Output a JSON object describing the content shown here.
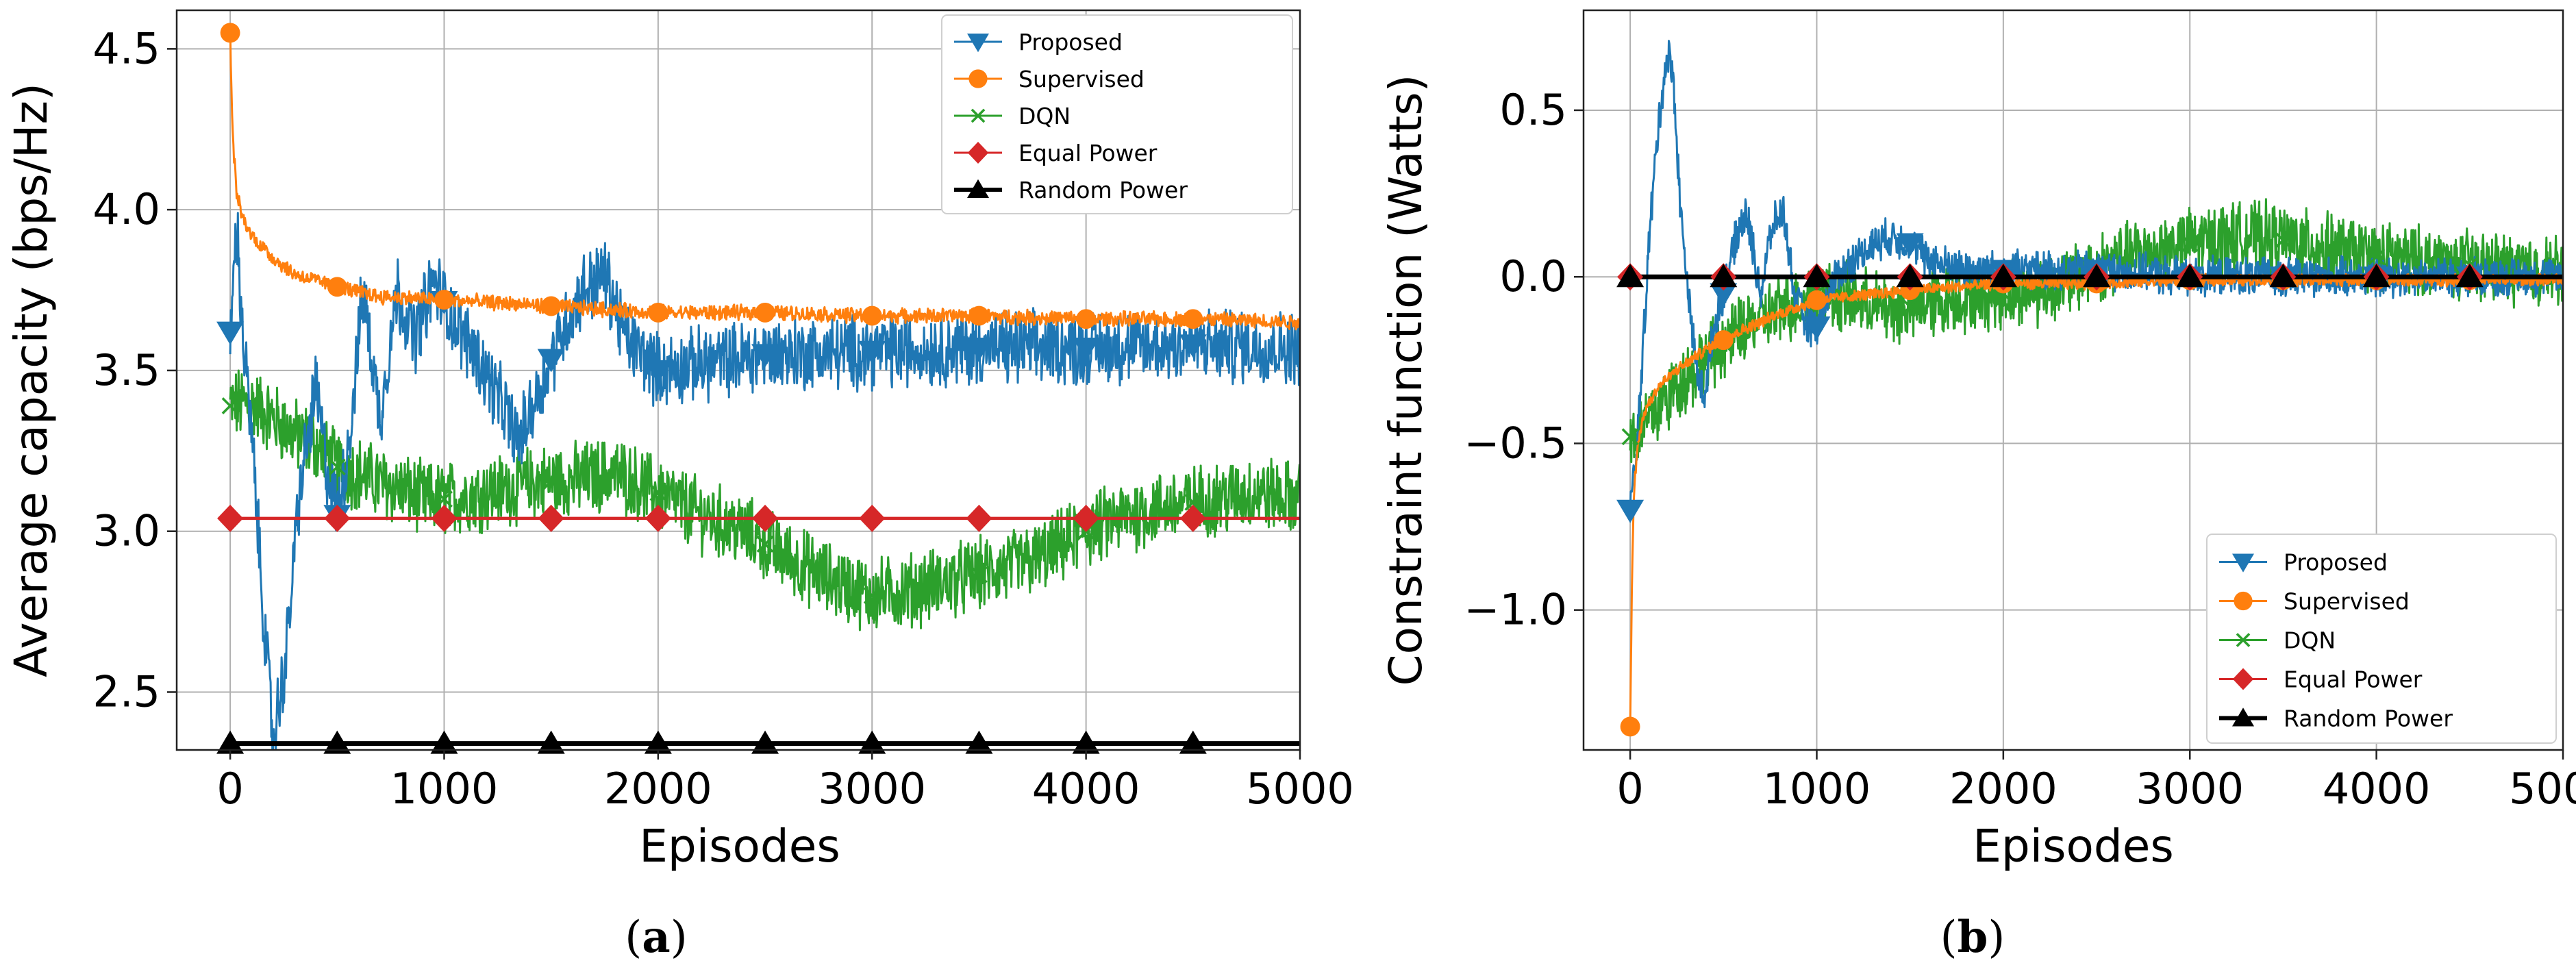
{
  "colors": {
    "proposed": "#1f77b4",
    "supervised": "#ff7f0e",
    "dqn": "#2ca02c",
    "equal_power": "#d62728",
    "random_power": "#000000"
  },
  "legend": [
    "Proposed",
    "Supervised",
    "DQN",
    "Equal Power",
    "Random Power"
  ],
  "panels": [
    {
      "label_open": "(",
      "label_letter": "a",
      "label_close": ")"
    },
    {
      "label_open": "(",
      "label_letter": "b",
      "label_close": ")"
    }
  ],
  "chart_data": [
    {
      "type": "line",
      "xlabel": "Episodes",
      "ylabel": "Average capacity (bps/Hz)",
      "xlim": [
        -250,
        5000
      ],
      "ylim": [
        2.32,
        4.62
      ],
      "xticks": [
        0,
        1000,
        2000,
        3000,
        4000,
        5000
      ],
      "xtick_labels": [
        "0",
        "1000",
        "2000",
        "3000",
        "4000",
        "5000"
      ],
      "yticks": [
        2.5,
        3.0,
        3.5,
        4.0,
        4.5
      ],
      "ytick_labels": [
        "2.5",
        "3.0",
        "3.5",
        "4.0",
        "4.5"
      ],
      "grid": true,
      "legend_position": "top-right",
      "series": [
        {
          "name": "Proposed",
          "marker": "triangle-down",
          "x": [
            0,
            30,
            60,
            100,
            150,
            200,
            260,
            320,
            400,
            450,
            500,
            560,
            620,
            700,
            780,
            860,
            950,
            1050,
            1150,
            1250,
            1350,
            1450,
            1550,
            1650,
            1750,
            1850,
            2000,
            2200,
            2500,
            3000,
            3500,
            4000,
            4500,
            5000
          ],
          "y": [
            3.62,
            3.95,
            3.6,
            3.3,
            2.8,
            2.35,
            2.6,
            3.1,
            3.45,
            3.2,
            3.05,
            3.3,
            3.75,
            3.35,
            3.75,
            3.6,
            3.78,
            3.65,
            3.55,
            3.42,
            3.28,
            3.45,
            3.62,
            3.75,
            3.8,
            3.6,
            3.5,
            3.52,
            3.55,
            3.56,
            3.57,
            3.57,
            3.58,
            3.57
          ],
          "noise": 0.1
        },
        {
          "name": "Supervised",
          "marker": "circle",
          "x": [
            0,
            10,
            30,
            60,
            100,
            200,
            300,
            500,
            700,
            1000,
            1500,
            2000,
            2500,
            3000,
            3500,
            4000,
            4500,
            5000
          ],
          "y": [
            4.55,
            4.25,
            4.05,
            3.97,
            3.92,
            3.85,
            3.8,
            3.76,
            3.73,
            3.72,
            3.7,
            3.68,
            3.68,
            3.67,
            3.67,
            3.66,
            3.66,
            3.65
          ],
          "noise": 0.02
        },
        {
          "name": "DQN",
          "marker": "x",
          "x": [
            0,
            100,
            200,
            300,
            400,
            500,
            600,
            700,
            800,
            900,
            1000,
            1200,
            1400,
            1600,
            1800,
            2000,
            2200,
            2400,
            2600,
            2800,
            3000,
            3200,
            3400,
            3600,
            3800,
            4000,
            4200,
            4400,
            4600,
            4800,
            5000
          ],
          "y": [
            3.39,
            3.4,
            3.35,
            3.3,
            3.27,
            3.2,
            3.18,
            3.15,
            3.13,
            3.1,
            3.1,
            3.12,
            3.15,
            3.16,
            3.18,
            3.12,
            3.05,
            3.0,
            2.92,
            2.85,
            2.8,
            2.82,
            2.85,
            2.88,
            2.92,
            3.0,
            3.05,
            3.08,
            3.1,
            3.12,
            3.1
          ],
          "noise": 0.1
        },
        {
          "name": "Equal Power",
          "marker": "diamond",
          "x": [
            0,
            5000
          ],
          "y": [
            3.04,
            3.04
          ],
          "noise": 0
        },
        {
          "name": "Random Power",
          "marker": "triangle-up",
          "x": [
            0,
            5000
          ],
          "y": [
            2.34,
            2.34
          ],
          "noise": 0
        }
      ]
    },
    {
      "type": "line",
      "xlabel": "Episodes",
      "ylabel": "Constraint function (Watts)",
      "xlim": [
        -250,
        5000
      ],
      "ylim": [
        -1.42,
        0.8
      ],
      "xticks": [
        0,
        1000,
        2000,
        3000,
        4000,
        5000
      ],
      "xtick_labels": [
        "0",
        "1000",
        "2000",
        "3000",
        "4000",
        "5000"
      ],
      "yticks": [
        -1.0,
        -0.5,
        0.0,
        0.5
      ],
      "ytick_labels": [
        "−1.0",
        "−0.5",
        "0.0",
        "0.5"
      ],
      "grid": true,
      "legend_position": "bottom-right",
      "series": [
        {
          "name": "Proposed",
          "marker": "triangle-down",
          "x": [
            0,
            30,
            60,
            100,
            150,
            200,
            230,
            270,
            320,
            360,
            400,
            450,
            500,
            560,
            620,
            700,
            760,
            820,
            880,
            950,
            1000,
            1100,
            1200,
            1300,
            1400,
            1500,
            1600,
            1800,
            2000,
            2500,
            3000,
            3500,
            4000,
            4500,
            5000
          ],
          "y": [
            -0.7,
            -0.55,
            -0.3,
            0.1,
            0.45,
            0.68,
            0.6,
            0.2,
            -0.1,
            -0.3,
            -0.35,
            -0.15,
            -0.05,
            0.1,
            0.2,
            -0.05,
            0.15,
            0.2,
            -0.05,
            -0.15,
            -0.15,
            0.0,
            0.05,
            0.1,
            0.12,
            0.1,
            0.05,
            0.02,
            0.02,
            0.02,
            0.0,
            0.0,
            0.0,
            0.0,
            0.0
          ],
          "noise": 0.05
        },
        {
          "name": "Supervised",
          "marker": "circle",
          "x": [
            0,
            10,
            20,
            40,
            80,
            150,
            250,
            400,
            600,
            800,
            1000,
            1500,
            2000,
            2500,
            3000,
            3500,
            4000,
            4500,
            5000
          ],
          "y": [
            -1.35,
            -0.9,
            -0.65,
            -0.5,
            -0.4,
            -0.33,
            -0.28,
            -0.22,
            -0.16,
            -0.11,
            -0.07,
            -0.04,
            -0.02,
            -0.02,
            -0.01,
            -0.01,
            -0.01,
            -0.01,
            -0.01
          ],
          "noise": 0.015
        },
        {
          "name": "DQN",
          "marker": "x",
          "x": [
            0,
            100,
            200,
            300,
            400,
            500,
            600,
            800,
            1000,
            1200,
            1400,
            1600,
            1800,
            2000,
            2200,
            2400,
            2600,
            2800,
            3000,
            3200,
            3400,
            3600,
            3800,
            4000,
            4200,
            4400,
            4600,
            4800,
            5000
          ],
          "y": [
            -0.48,
            -0.42,
            -0.36,
            -0.3,
            -0.25,
            -0.2,
            -0.16,
            -0.1,
            -0.05,
            -0.07,
            -0.1,
            -0.08,
            -0.06,
            -0.05,
            -0.04,
            0.0,
            0.05,
            0.08,
            0.1,
            0.12,
            0.12,
            0.1,
            0.08,
            0.06,
            0.05,
            0.04,
            0.03,
            0.02,
            0.02
          ],
          "noise": 0.09
        },
        {
          "name": "Equal Power",
          "marker": "diamond",
          "x": [
            0,
            5000
          ],
          "y": [
            0.0,
            0.0
          ],
          "noise": 0
        },
        {
          "name": "Random Power",
          "marker": "triangle-up",
          "x": [
            0,
            5000
          ],
          "y": [
            0.0,
            0.0
          ],
          "noise": 0
        }
      ]
    }
  ]
}
